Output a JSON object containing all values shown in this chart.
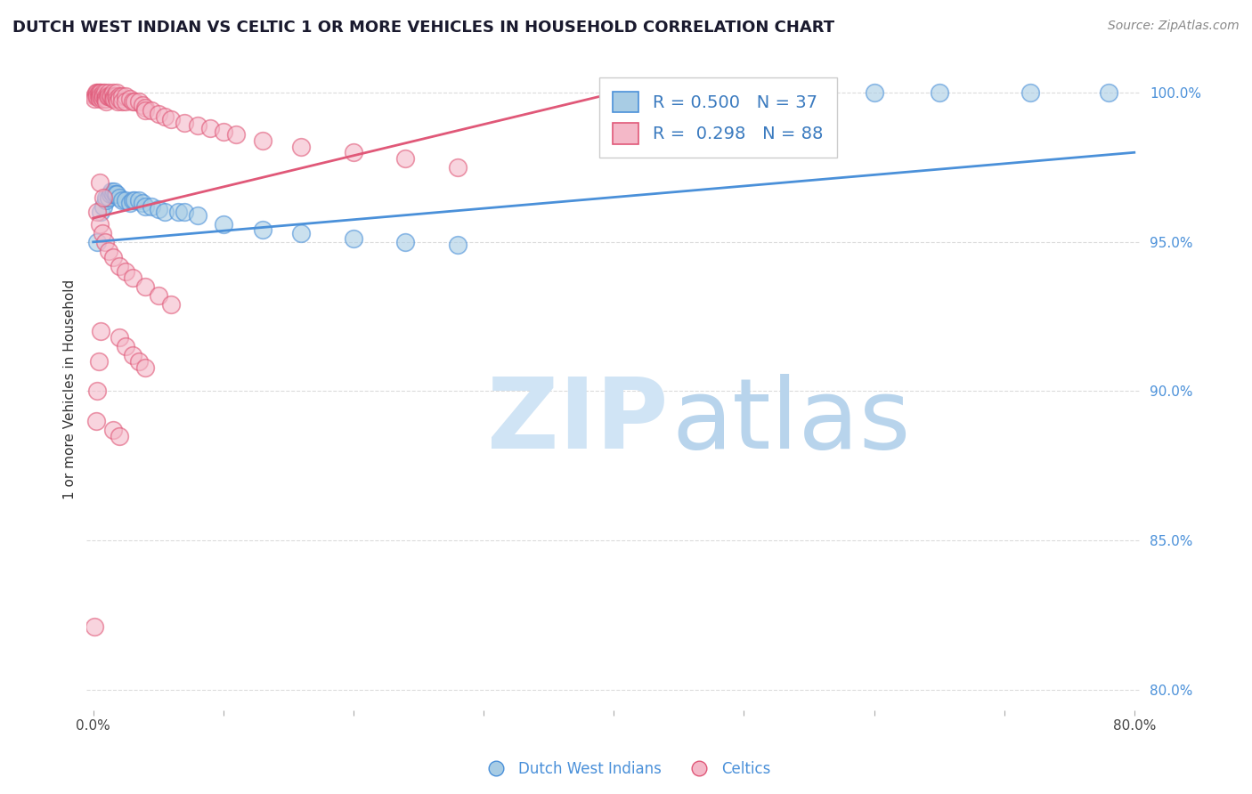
{
  "title": "DUTCH WEST INDIAN VS CELTIC 1 OR MORE VEHICLES IN HOUSEHOLD CORRELATION CHART",
  "source": "Source: ZipAtlas.com",
  "xlabel": "",
  "ylabel": "1 or more Vehicles in Household",
  "legend_label1": "Dutch West Indians",
  "legend_label2": "Celtics",
  "R1": 0.5,
  "N1": 37,
  "R2": 0.298,
  "N2": 88,
  "xlim": [
    -0.005,
    0.805
  ],
  "ylim": [
    0.793,
    1.008
  ],
  "xticks": [
    0.0,
    0.1,
    0.2,
    0.3,
    0.4,
    0.5,
    0.6,
    0.7,
    0.8
  ],
  "xticklabels": [
    "0.0%",
    "",
    "",
    "",
    "",
    "",
    "",
    "",
    "80.0%"
  ],
  "yticks_right": [
    0.8,
    0.85,
    0.9,
    0.95,
    1.0
  ],
  "ytick_labels_right": [
    "80.0%",
    "85.0%",
    "90.0%",
    "95.0%",
    "100.0%"
  ],
  "color_blue": "#a8cce4",
  "color_pink": "#f4b8c8",
  "color_blue_line": "#4a90d9",
  "color_pink_line": "#e05878",
  "watermark_color": "#dae8f5",
  "background_color": "#ffffff",
  "grid_color": "#cccccc",
  "blue_x": [
    0.003,
    0.006,
    0.008,
    0.01,
    0.01,
    0.012,
    0.013,
    0.014,
    0.015,
    0.016,
    0.017,
    0.018,
    0.02,
    0.022,
    0.025,
    0.028,
    0.03,
    0.032,
    0.035,
    0.038,
    0.04,
    0.045,
    0.05,
    0.055,
    0.065,
    0.07,
    0.08,
    0.1,
    0.13,
    0.16,
    0.2,
    0.24,
    0.28,
    0.6,
    0.65,
    0.72,
    0.78
  ],
  "blue_y": [
    0.95,
    0.96,
    0.962,
    0.964,
    0.965,
    0.965,
    0.966,
    0.967,
    0.966,
    0.967,
    0.966,
    0.966,
    0.965,
    0.964,
    0.964,
    0.963,
    0.964,
    0.964,
    0.964,
    0.963,
    0.962,
    0.962,
    0.961,
    0.96,
    0.96,
    0.96,
    0.959,
    0.956,
    0.954,
    0.953,
    0.951,
    0.95,
    0.949,
    1.0,
    1.0,
    1.0,
    1.0
  ],
  "pink_x": [
    0.001,
    0.001,
    0.002,
    0.002,
    0.003,
    0.003,
    0.004,
    0.004,
    0.005,
    0.005,
    0.005,
    0.006,
    0.006,
    0.007,
    0.007,
    0.008,
    0.008,
    0.009,
    0.009,
    0.01,
    0.01,
    0.01,
    0.011,
    0.012,
    0.012,
    0.013,
    0.014,
    0.015,
    0.015,
    0.016,
    0.016,
    0.017,
    0.018,
    0.018,
    0.019,
    0.02,
    0.02,
    0.022,
    0.022,
    0.025,
    0.025,
    0.028,
    0.03,
    0.032,
    0.035,
    0.038,
    0.04,
    0.04,
    0.045,
    0.05,
    0.055,
    0.06,
    0.07,
    0.08,
    0.09,
    0.1,
    0.11,
    0.13,
    0.16,
    0.2,
    0.24,
    0.28,
    0.003,
    0.005,
    0.007,
    0.009,
    0.012,
    0.015,
    0.02,
    0.025,
    0.03,
    0.04,
    0.05,
    0.06,
    0.02,
    0.025,
    0.03,
    0.035,
    0.04,
    0.015,
    0.02,
    0.006,
    0.004,
    0.003,
    0.002,
    0.001,
    0.005,
    0.008
  ],
  "pink_y": [
    0.999,
    0.998,
    1.0,
    0.999,
    1.0,
    0.999,
    1.0,
    0.999,
    1.0,
    0.999,
    0.998,
    1.0,
    0.999,
    0.999,
    0.998,
    1.0,
    0.999,
    1.0,
    0.998,
    0.999,
    0.998,
    0.997,
    0.999,
    1.0,
    0.999,
    0.999,
    0.999,
    1.0,
    0.998,
    0.999,
    0.998,
    0.999,
    1.0,
    0.998,
    0.997,
    0.999,
    0.998,
    0.999,
    0.997,
    0.999,
    0.997,
    0.998,
    0.997,
    0.997,
    0.997,
    0.996,
    0.995,
    0.994,
    0.994,
    0.993,
    0.992,
    0.991,
    0.99,
    0.989,
    0.988,
    0.987,
    0.986,
    0.984,
    0.982,
    0.98,
    0.978,
    0.975,
    0.96,
    0.956,
    0.953,
    0.95,
    0.947,
    0.945,
    0.942,
    0.94,
    0.938,
    0.935,
    0.932,
    0.929,
    0.918,
    0.915,
    0.912,
    0.91,
    0.908,
    0.887,
    0.885,
    0.92,
    0.91,
    0.9,
    0.89,
    0.821,
    0.97,
    0.965
  ],
  "blue_trend_x": [
    0.0,
    0.8
  ],
  "blue_trend_y": [
    0.95,
    0.98
  ],
  "pink_trend_x": [
    0.0,
    0.42
  ],
  "pink_trend_y": [
    0.958,
    1.002
  ]
}
